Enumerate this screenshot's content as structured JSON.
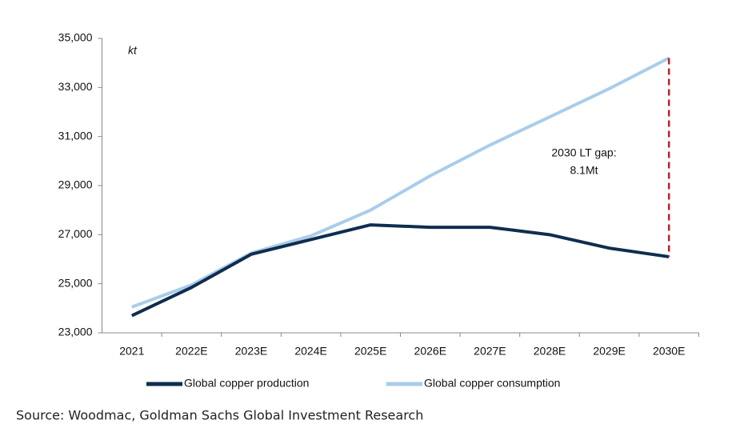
{
  "chart_data": {
    "type": "line",
    "unit": "kt",
    "categories": [
      "2021",
      "2022E",
      "2023E",
      "2024E",
      "2025E",
      "2026E",
      "2027E",
      "2028E",
      "2029E",
      "2030E"
    ],
    "series": [
      {
        "name": "Global copper production",
        "color": "#0f2d4f",
        "values": [
          23700,
          24850,
          26200,
          26800,
          27400,
          27300,
          27300,
          27000,
          26450,
          26100
        ]
      },
      {
        "name": "Global copper consumption",
        "color": "#a9cdea",
        "values": [
          24050,
          24950,
          26250,
          26950,
          28000,
          29400,
          30650,
          31800,
          32950,
          34200
        ]
      }
    ],
    "ylim": [
      23000,
      35000
    ],
    "yticks": [
      {
        "value": 23000,
        "label": "23,000"
      },
      {
        "value": 25000,
        "label": "25,000"
      },
      {
        "value": 27000,
        "label": "27,000"
      },
      {
        "value": 29000,
        "label": "29,000"
      },
      {
        "value": 31000,
        "label": "31,000"
      },
      {
        "value": 33000,
        "label": "33,000"
      },
      {
        "value": 35000,
        "label": "35,000"
      }
    ],
    "annotation": [
      "2030 LT gap:",
      "8.1Mt"
    ],
    "gap_color": "#c0202a",
    "source": "Source: Woodmac, Goldman Sachs Global Investment Research"
  }
}
